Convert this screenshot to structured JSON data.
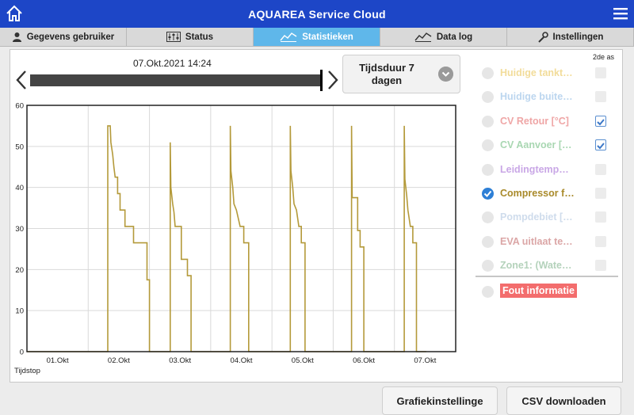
{
  "app": {
    "title": "AQUAREA Service Cloud",
    "home_icon": "home-icon",
    "menu_icon": "hamburger-menu-icon",
    "brand_color": "#1d46c7",
    "active_tab_color": "#5fb7ea"
  },
  "tabs": [
    {
      "label": "Gegevens gebruiker",
      "icon": "user-icon",
      "active": false
    },
    {
      "label": "Status",
      "icon": "equalizer-icon",
      "active": false
    },
    {
      "label": "Statistieken",
      "icon": "chart-line-icon",
      "active": true
    },
    {
      "label": "Data log",
      "icon": "data-log-icon",
      "active": false
    },
    {
      "label": "Instellingen",
      "icon": "wrench-icon",
      "active": false
    }
  ],
  "timeline": {
    "date_label": "07.Okt.2021 14:24",
    "prev_icon": "chevron-left-icon",
    "next_icon": "chevron-right-icon"
  },
  "duration": {
    "line1": "Tijdsduur 7",
    "line2": "dagen",
    "icon": "chevron-down-circle-icon"
  },
  "legend": {
    "header": "2de as",
    "items": [
      {
        "label": "Huidige tankt…",
        "color": "#f2dc9a",
        "selected": false,
        "second_axis": false
      },
      {
        "label": "Huidige buite…",
        "color": "#bcd6ef",
        "selected": false,
        "second_axis": false
      },
      {
        "label": "CV Retour [°C]",
        "color": "#efa6a6",
        "selected": false,
        "second_axis": true
      },
      {
        "label": "CV Aanvoer […",
        "color": "#a9d7b2",
        "selected": false,
        "second_axis": true
      },
      {
        "label": "Leidingtemp…",
        "color": "#c9a7e6",
        "selected": false,
        "second_axis": false
      },
      {
        "label": "Compressor f…",
        "color": "#a98a2a",
        "selected": true,
        "second_axis": false
      },
      {
        "label": "Pompdebiet […",
        "color": "#cfdcec",
        "selected": false,
        "second_axis": false
      },
      {
        "label": "EVA uitlaat te…",
        "color": "#dba6a6",
        "selected": false,
        "second_axis": false
      },
      {
        "label": "Zone1: (Wate…",
        "color": "#b4d2bb",
        "selected": false,
        "second_axis": false
      }
    ],
    "error_item": {
      "label": "Fout informatie",
      "color": "#f36d6d"
    }
  },
  "chart_data": {
    "type": "line",
    "series": [
      {
        "color": "#b49a3a",
        "points": [
          [
            0,
            0
          ],
          [
            1.32,
            0
          ],
          [
            1.32,
            55
          ],
          [
            1.36,
            55
          ],
          [
            1.37,
            51
          ],
          [
            1.4,
            48
          ],
          [
            1.42,
            45
          ],
          [
            1.44,
            42.5
          ],
          [
            1.48,
            42.5
          ],
          [
            1.48,
            38.5
          ],
          [
            1.52,
            38.5
          ],
          [
            1.52,
            34.5
          ],
          [
            1.6,
            34.5
          ],
          [
            1.6,
            30.5
          ],
          [
            1.74,
            30.5
          ],
          [
            1.74,
            26.5
          ],
          [
            1.96,
            26.5
          ],
          [
            1.96,
            17.5
          ],
          [
            2.0,
            17.5
          ],
          [
            2.0,
            0
          ],
          [
            2.34,
            0
          ],
          [
            2.34,
            51
          ],
          [
            2.35,
            40
          ],
          [
            2.38,
            36
          ],
          [
            2.4,
            34
          ],
          [
            2.42,
            30.5
          ],
          [
            2.52,
            30.5
          ],
          [
            2.52,
            22.5
          ],
          [
            2.62,
            22.5
          ],
          [
            2.62,
            18.5
          ],
          [
            2.68,
            18.5
          ],
          [
            2.68,
            0
          ],
          [
            3.32,
            0
          ],
          [
            3.32,
            55
          ],
          [
            3.33,
            44
          ],
          [
            3.36,
            40
          ],
          [
            3.38,
            36
          ],
          [
            3.42,
            34.5
          ],
          [
            3.48,
            30.5
          ],
          [
            3.54,
            30.5
          ],
          [
            3.54,
            26.5
          ],
          [
            3.62,
            26.5
          ],
          [
            3.62,
            0
          ],
          [
            4.3,
            0
          ],
          [
            4.3,
            55
          ],
          [
            4.31,
            44
          ],
          [
            4.34,
            40
          ],
          [
            4.36,
            36
          ],
          [
            4.4,
            34.5
          ],
          [
            4.44,
            30.5
          ],
          [
            4.48,
            30.5
          ],
          [
            4.48,
            26.5
          ],
          [
            4.54,
            26.5
          ],
          [
            4.54,
            0
          ],
          [
            5.3,
            0
          ],
          [
            5.3,
            55
          ],
          [
            5.31,
            37.5
          ],
          [
            5.4,
            37.5
          ],
          [
            5.4,
            29.5
          ],
          [
            5.44,
            29.5
          ],
          [
            5.44,
            25.5
          ],
          [
            5.5,
            25.5
          ],
          [
            5.5,
            0
          ],
          [
            6.16,
            0
          ],
          [
            6.16,
            55
          ],
          [
            6.17,
            42
          ],
          [
            6.2,
            38
          ],
          [
            6.22,
            34.5
          ],
          [
            6.26,
            30.5
          ],
          [
            6.3,
            30.5
          ],
          [
            6.3,
            26.5
          ],
          [
            6.36,
            26.5
          ],
          [
            6.36,
            0
          ],
          [
            6.52,
            0
          ]
        ]
      }
    ],
    "x_ticks": [
      {
        "pos": 0.5,
        "label": "01.Okt"
      },
      {
        "pos": 1.5,
        "label": "02.Okt"
      },
      {
        "pos": 2.5,
        "label": "03.Okt"
      },
      {
        "pos": 3.5,
        "label": "04.Okt"
      },
      {
        "pos": 4.5,
        "label": "05.Okt"
      },
      {
        "pos": 5.5,
        "label": "06.Okt"
      },
      {
        "pos": 6.5,
        "label": "07.Okt"
      }
    ],
    "xlim": [
      0,
      7
    ],
    "y_ticks": [
      0,
      10,
      20,
      30,
      40,
      50,
      60
    ],
    "ylim": [
      0,
      60
    ],
    "xlabel": "Tijdstop",
    "grid": true
  },
  "buttons": {
    "chart_settings": "Grafiekinstellinge",
    "csv_download": "CSV downloaden"
  }
}
